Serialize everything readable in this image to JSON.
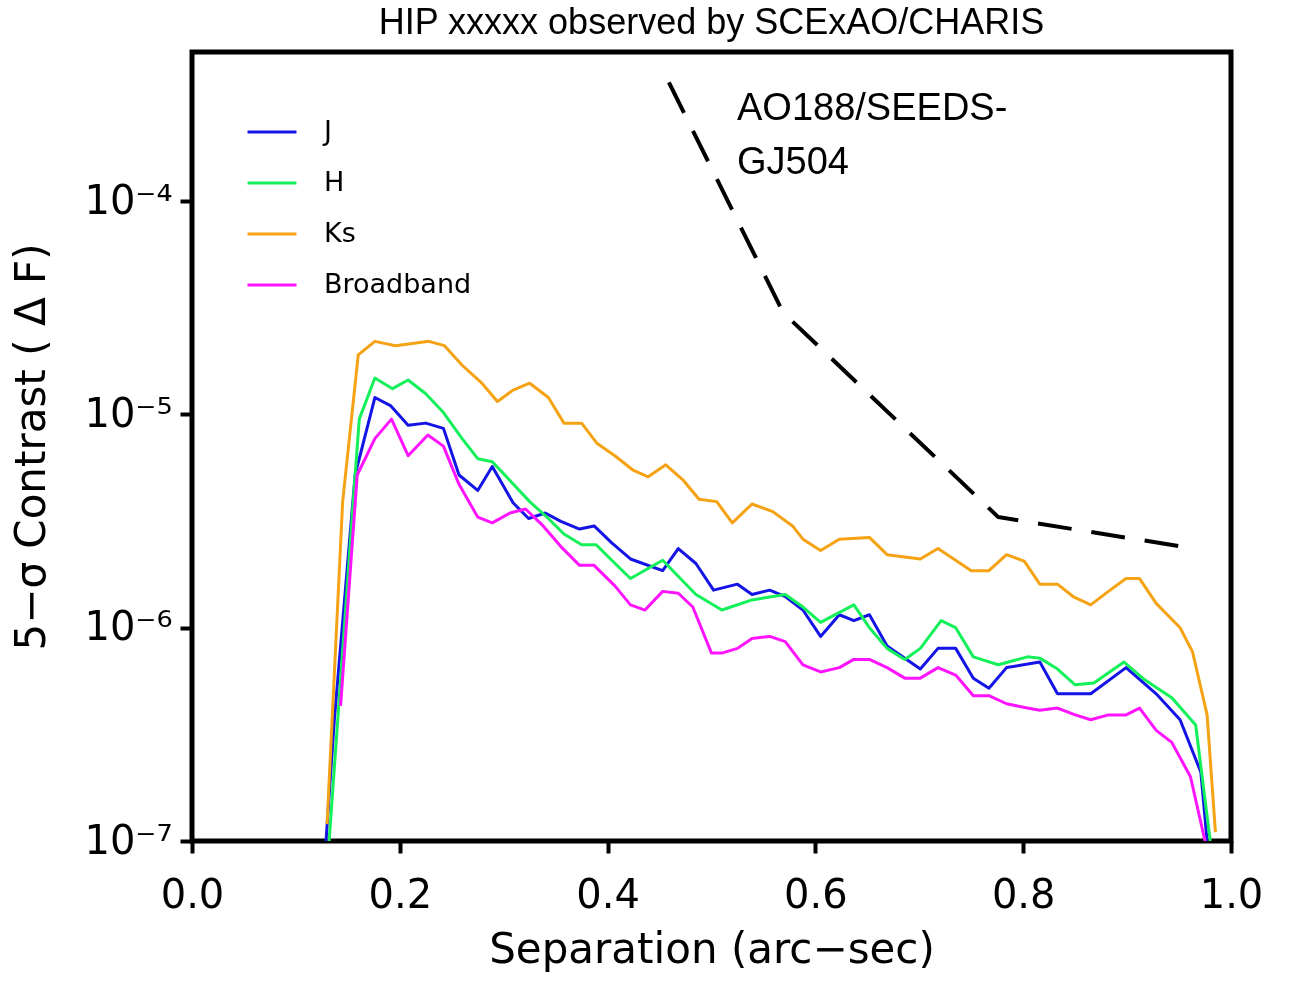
{
  "chart_data": {
    "type": "line",
    "title": "HIP xxxxx observed by SCExAO/CHARIS",
    "xlabel": "Separation (arc−sec)",
    "ylabel": "5−σ Contrast ( Δ F)",
    "log": "y",
    "grid": false,
    "legend": "top left",
    "xlim": [
      0,
      1
    ],
    "xticks": [
      {
        "value": 0,
        "label": "0.0"
      },
      {
        "value": 0.2,
        "label": "0.2"
      },
      {
        "value": 0.4,
        "label": "0.4"
      },
      {
        "value": 0.6,
        "label": "0.6"
      },
      {
        "value": 0.8,
        "label": "0.8"
      },
      {
        "value": 1,
        "label": "1.0"
      }
    ],
    "ylim": [
      1e-07,
      0.0005
    ],
    "yticks": [
      {
        "value": 1e-07,
        "label": "10⁻⁷"
      },
      {
        "value": 1e-06,
        "label": "10⁻⁶"
      },
      {
        "value": 1e-05,
        "label": "10⁻⁵"
      },
      {
        "value": 0.0001,
        "label": "10⁻⁴"
      }
    ],
    "annotations": [
      "AO188/SEEDS-\nGJ504"
    ],
    "series": [
      {
        "name": "J",
        "color": "#1414e6",
        "x": [
          0.129,
          0.137,
          0.157,
          0.176,
          0.191,
          0.208,
          0.225,
          0.242,
          0.257,
          0.275,
          0.289,
          0.309,
          0.324,
          0.34,
          0.355,
          0.373,
          0.387,
          0.404,
          0.422,
          0.453,
          0.468,
          0.485,
          0.502,
          0.525,
          0.539,
          0.556,
          0.571,
          0.588,
          0.605,
          0.623,
          0.637,
          0.652,
          0.669,
          0.701,
          0.718,
          0.735,
          0.752,
          0.767,
          0.784,
          0.816,
          0.833,
          0.865,
          0.899,
          0.928,
          0.951,
          0.971,
          0.977
        ],
        "values": [
          1e-07,
          3.7e-07,
          5.2e-06,
          1.2e-05,
          1.1e-05,
          8.9e-06,
          9.1e-06,
          8.6e-06,
          5.2e-06,
          4.4e-06,
          5.7e-06,
          3.85e-06,
          3.25e-06,
          3.45e-06,
          3.15e-06,
          2.9e-06,
          3e-06,
          2.5e-06,
          2.1e-06,
          1.85e-06,
          2.35e-06,
          2e-06,
          1.5e-06,
          1.6e-06,
          1.43e-06,
          1.5e-06,
          1.4e-06,
          1.21e-06,
          9.1e-07,
          1.15e-06,
          1.08e-06,
          1.15e-06,
          8.2e-07,
          6.4e-07,
          8e-07,
          8e-07,
          5.8e-07,
          5.2e-07,
          6.5e-07,
          6.9e-07,
          4.9e-07,
          4.9e-07,
          6.5e-07,
          4.9e-07,
          3.7e-07,
          2.1e-07,
          1e-07
        ]
      },
      {
        "name": "H",
        "color": "#14f05a",
        "x": [
          0.132,
          0.157,
          0.161,
          0.176,
          0.193,
          0.208,
          0.225,
          0.242,
          0.26,
          0.275,
          0.289,
          0.306,
          0.325,
          0.343,
          0.358,
          0.375,
          0.389,
          0.404,
          0.422,
          0.453,
          0.485,
          0.51,
          0.539,
          0.571,
          0.588,
          0.605,
          0.637,
          0.652,
          0.669,
          0.686,
          0.701,
          0.721,
          0.735,
          0.752,
          0.776,
          0.804,
          0.816,
          0.833,
          0.85,
          0.868,
          0.897,
          0.917,
          0.943,
          0.966,
          0.98
        ],
        "values": [
          1e-07,
          5.2e-06,
          9.5e-06,
          1.48e-05,
          1.32e-05,
          1.45e-05,
          1.25e-05,
          1.02e-05,
          7.7e-06,
          6.2e-06,
          6e-06,
          4.9e-06,
          3.9e-06,
          3.25e-06,
          2.75e-06,
          2.45e-06,
          2.45e-06,
          2.07e-06,
          1.7e-06,
          2.07e-06,
          1.43e-06,
          1.21e-06,
          1.35e-06,
          1.43e-06,
          1.25e-06,
          1.06e-06,
          1.28e-06,
          1e-06,
          8e-07,
          7.1e-07,
          8e-07,
          1.08e-06,
          1e-06,
          7.3e-07,
          6.7e-07,
          7.3e-07,
          7.2e-07,
          6.4e-07,
          5.4e-07,
          5.5e-07,
          6.9e-07,
          5.7e-07,
          4.7e-07,
          3.5e-07,
          1e-07
        ]
      },
      {
        "name": "Ks",
        "color": "#f5a214",
        "x": [
          0.13,
          0.145,
          0.16,
          0.176,
          0.196,
          0.228,
          0.243,
          0.26,
          0.279,
          0.294,
          0.309,
          0.325,
          0.343,
          0.358,
          0.375,
          0.39,
          0.407,
          0.424,
          0.439,
          0.456,
          0.473,
          0.488,
          0.505,
          0.52,
          0.539,
          0.559,
          0.578,
          0.588,
          0.605,
          0.623,
          0.652,
          0.669,
          0.701,
          0.718,
          0.75,
          0.767,
          0.784,
          0.801,
          0.816,
          0.833,
          0.848,
          0.865,
          0.882,
          0.899,
          0.912,
          0.928,
          0.951,
          0.963,
          0.977,
          0.985
        ],
        "values": [
          1.2e-07,
          3.9e-06,
          1.9e-05,
          2.2e-05,
          2.1e-05,
          2.2e-05,
          2.1e-05,
          1.7e-05,
          1.4e-05,
          1.15e-05,
          1.3e-05,
          1.4e-05,
          1.2e-05,
          9.1e-06,
          9.1e-06,
          7.3e-06,
          6.4e-06,
          5.5e-06,
          5.1e-06,
          5.8e-06,
          4.9e-06,
          4e-06,
          3.9e-06,
          3.1e-06,
          3.8e-06,
          3.5e-06,
          3e-06,
          2.6e-06,
          2.3e-06,
          2.6e-06,
          2.65e-06,
          2.2e-06,
          2.1e-06,
          2.35e-06,
          1.85e-06,
          1.85e-06,
          2.2e-06,
          2.05e-06,
          1.6e-06,
          1.6e-06,
          1.4e-06,
          1.28e-06,
          1.48e-06,
          1.7e-06,
          1.7e-06,
          1.3e-06,
          1e-06,
          7.7e-07,
          3.9e-07,
          1.1e-07
        ]
      },
      {
        "name": "Broadband",
        "color": "#ff14ff",
        "x": [
          0.143,
          0.159,
          0.176,
          0.192,
          0.208,
          0.227,
          0.242,
          0.257,
          0.275,
          0.289,
          0.306,
          0.321,
          0.338,
          0.355,
          0.373,
          0.387,
          0.407,
          0.422,
          0.436,
          0.453,
          0.468,
          0.482,
          0.5,
          0.51,
          0.525,
          0.539,
          0.556,
          0.571,
          0.588,
          0.605,
          0.623,
          0.637,
          0.652,
          0.669,
          0.686,
          0.701,
          0.718,
          0.735,
          0.752,
          0.767,
          0.784,
          0.804,
          0.816,
          0.833,
          0.85,
          0.865,
          0.882,
          0.899,
          0.912,
          0.928,
          0.943,
          0.961,
          0.975
        ],
        "values": [
          4.3e-07,
          5.2e-06,
          7.7e-06,
          9.5e-06,
          6.4e-06,
          8e-06,
          7.1e-06,
          4.7e-06,
          3.3e-06,
          3.1e-06,
          3.45e-06,
          3.6e-06,
          3e-06,
          2.4e-06,
          1.96e-06,
          1.96e-06,
          1.57e-06,
          1.28e-06,
          1.21e-06,
          1.48e-06,
          1.45e-06,
          1.25e-06,
          7.6e-07,
          7.6e-07,
          8e-07,
          8.9e-07,
          9.1e-07,
          8.6e-07,
          6.7e-07,
          6.2e-07,
          6.5e-07,
          7.1e-07,
          7.1e-07,
          6.5e-07,
          5.8e-07,
          5.8e-07,
          6.5e-07,
          6e-07,
          4.8e-07,
          4.8e-07,
          4.4e-07,
          4.2e-07,
          4.1e-07,
          4.2e-07,
          3.9e-07,
          3.7e-07,
          3.9e-07,
          3.9e-07,
          4.2e-07,
          3.3e-07,
          2.9e-07,
          2e-07,
          1e-07
        ]
      },
      {
        "color": "#000000",
        "line_style": "dashed",
        "x": [
          0.459,
          0.569,
          0.776,
          0.953
        ],
        "values": [
          0.00036,
          3e-05,
          3.3e-06,
          2.4e-06
        ]
      }
    ]
  }
}
